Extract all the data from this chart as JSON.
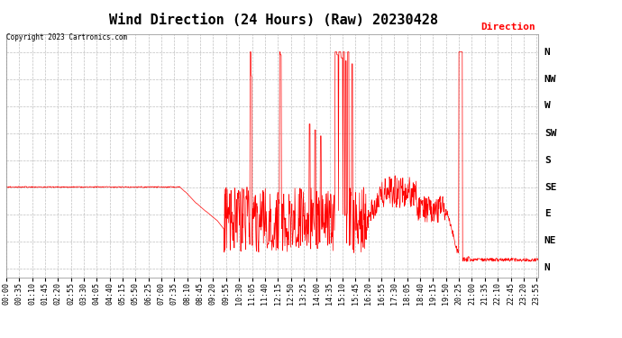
{
  "title": "Wind Direction (24 Hours) (Raw) 20230428",
  "copyright_text": "Copyright 2023 Cartronics.com",
  "legend_label": "Direction",
  "legend_color": "#ff0000",
  "line_color": "#ff0000",
  "background_color": "#ffffff",
  "grid_color": "#b0b0b0",
  "ytick_labels": [
    "N",
    "NE",
    "E",
    "SE",
    "S",
    "SW",
    "W",
    "NW",
    "N"
  ],
  "ytick_values": [
    0,
    45,
    90,
    135,
    180,
    225,
    270,
    315,
    360
  ],
  "ylim": [
    -15,
    390
  ],
  "title_fontsize": 11,
  "tick_fontsize": 6,
  "total_minutes": 1440,
  "x_tick_interval": 35,
  "figsize": [
    6.9,
    3.75
  ],
  "dpi": 100
}
